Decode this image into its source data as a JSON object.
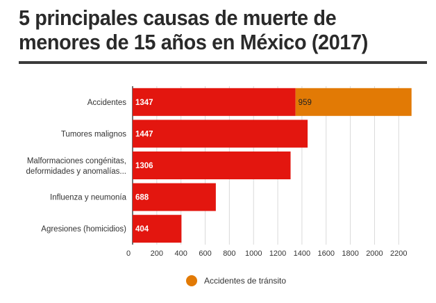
{
  "title": "5 principales causas de muerte de menores de 15 años en México (2017)",
  "colors": {
    "primary": "#e3160f",
    "secondary": "#e27a05",
    "grid": "#d9d9d9",
    "axis": "#444444"
  },
  "chart_data": {
    "type": "bar",
    "orientation": "horizontal",
    "stacked": true,
    "categories": [
      "Accidentes",
      "Tumores malignos",
      "Malformaciones congénitas, deformidades y anomalías...",
      "Influenza y neumonía",
      "Agresiones (homicidios)"
    ],
    "series": [
      {
        "values": [
          1347,
          1447,
          1306,
          688,
          404
        ]
      },
      {
        "name": "Accidentes de tránsito",
        "values": [
          959,
          null,
          null,
          null,
          null
        ]
      }
    ],
    "xticks": [
      0,
      200,
      400,
      600,
      800,
      1000,
      1200,
      1400,
      1600,
      1800,
      2000,
      2200
    ],
    "xlim": [
      0,
      2300
    ],
    "grid": true,
    "legend": "bottom-center"
  }
}
